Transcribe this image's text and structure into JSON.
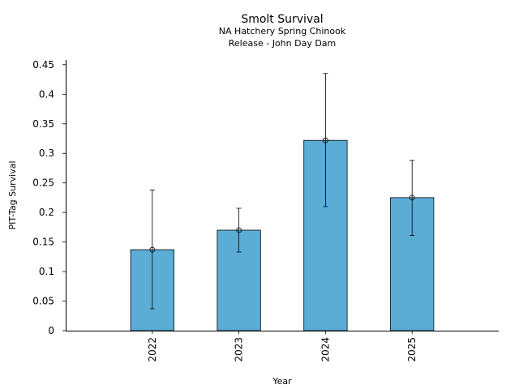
{
  "chart_data": {
    "type": "bar",
    "title": "Smolt Survival",
    "subtitle_lines": [
      "NA Hatchery Spring Chinook",
      "Release - John Day Dam"
    ],
    "xlabel": "Year",
    "ylabel": "PIT-Tag Survival",
    "categories": [
      "2022",
      "2023",
      "2024",
      "2025"
    ],
    "values": [
      0.137,
      0.17,
      0.322,
      0.225
    ],
    "error_low": [
      0.037,
      0.133,
      0.21,
      0.161
    ],
    "error_high": [
      0.238,
      0.207,
      0.435,
      0.288
    ],
    "ylim": [
      0,
      0.458
    ],
    "yticks": [
      0,
      0.05,
      0.1,
      0.15,
      0.2,
      0.25,
      0.3,
      0.35,
      0.4,
      0.45
    ],
    "ytick_labels": [
      "0",
      "0.05",
      "0.1",
      "0.15",
      "0.2",
      "0.25",
      "0.3",
      "0.35",
      "0.4",
      "0.45"
    ],
    "bar_color": "#5badd6",
    "edge_color": "#000000",
    "grid": false,
    "legend": "none"
  }
}
